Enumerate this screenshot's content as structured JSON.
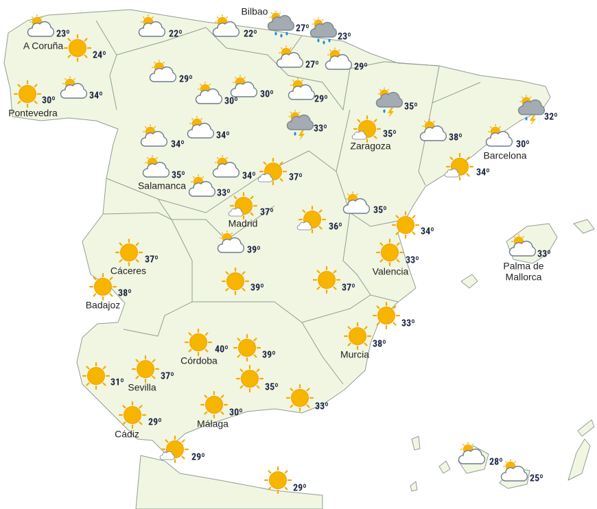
{
  "stations": [
    {
      "temp": "23º",
      "sky": "partly-cloudy"
    },
    {
      "name": "A Coruña",
      "temp": "24º",
      "sky": "sun"
    },
    {
      "name": "Pontevedra",
      "temp": "30º",
      "sky": "sun"
    },
    {
      "temp": "34º",
      "sky": "partly-cloudy"
    },
    {
      "temp": "22º",
      "sky": "partly-cloudy"
    },
    {
      "temp": "22º",
      "sky": "partly-cloudy"
    },
    {
      "name": "Bilbao",
      "temp": "27º",
      "sky": "rain"
    },
    {
      "temp": "23º",
      "sky": "rain"
    },
    {
      "temp": "27º",
      "sky": "partly-cloudy"
    },
    {
      "temp": "29º",
      "sky": "partly-cloudy"
    },
    {
      "temp": "29º",
      "sky": "partly-cloudy"
    },
    {
      "temp": "30º",
      "sky": "partly-cloudy"
    },
    {
      "temp": "30º",
      "sky": "partly-cloudy"
    },
    {
      "temp": "29º",
      "sky": "partly-cloudy"
    },
    {
      "temp": "33º",
      "sky": "storm"
    },
    {
      "temp": "35º",
      "sky": "storm"
    },
    {
      "temp": "32º",
      "sky": "storm"
    },
    {
      "temp": "34º",
      "sky": "partly-cloudy"
    },
    {
      "temp": "34º",
      "sky": "partly-cloudy"
    },
    {
      "name": "Zaragoza",
      "temp": "35º",
      "sky": "sun-cloud"
    },
    {
      "temp": "38º",
      "sky": "partly-cloudy"
    },
    {
      "name": "Barcelona",
      "temp": "30º",
      "sky": "partly-cloudy"
    },
    {
      "temp": "34º",
      "sky": "sun-cloud"
    },
    {
      "name": "Salamanca",
      "temp": "35º",
      "sky": "partly-cloudy"
    },
    {
      "temp": "34º",
      "sky": "partly-cloudy"
    },
    {
      "temp": "33º",
      "sky": "partly-cloudy"
    },
    {
      "temp": "37º",
      "sky": "sun-cloud"
    },
    {
      "name": "Madrid",
      "temp": "37º",
      "sky": "sun-cloud"
    },
    {
      "temp": "36º",
      "sky": "sun-cloud"
    },
    {
      "temp": "35º",
      "sky": "partly-cloudy"
    },
    {
      "temp": "34º",
      "sky": "sun"
    },
    {
      "name": "Valencia",
      "temp": "33º",
      "sky": "sun"
    },
    {
      "name": [
        "Palma de",
        "Mallorca"
      ],
      "temp": "33º",
      "sky": "partly-cloudy"
    },
    {
      "temp": "39º",
      "sky": "partly-cloudy"
    },
    {
      "name": "Cáceres",
      "temp": "37º",
      "sky": "sun"
    },
    {
      "name": "Badajoz",
      "temp": "38º",
      "sky": "sun"
    },
    {
      "temp": "39º",
      "sky": "sun"
    },
    {
      "temp": "37º",
      "sky": "sun"
    },
    {
      "temp": "33º",
      "sky": "sun"
    },
    {
      "name": "Murcia",
      "temp": "38º",
      "sky": "sun"
    },
    {
      "name": "Córdoba",
      "temp": "40º",
      "sky": "sun"
    },
    {
      "temp": "39º",
      "sky": "sun"
    },
    {
      "name": "Sevilla",
      "temp": "37º",
      "sky": "sun"
    },
    {
      "temp": "31º",
      "sky": "sun"
    },
    {
      "temp": "35º",
      "sky": "sun"
    },
    {
      "temp": "33º",
      "sky": "sun"
    },
    {
      "name": "Cádiz",
      "temp": "29º",
      "sky": "sun"
    },
    {
      "name": "Málaga",
      "temp": "30º",
      "sky": "sun"
    },
    {
      "temp": "29º",
      "sky": "sun-cloud"
    },
    {
      "temp": "29º",
      "sky": "sun"
    },
    {
      "temp": "28º",
      "sky": "partly-cloudy"
    },
    {
      "temp": "25º",
      "sky": "partly-cloudy"
    }
  ]
}
